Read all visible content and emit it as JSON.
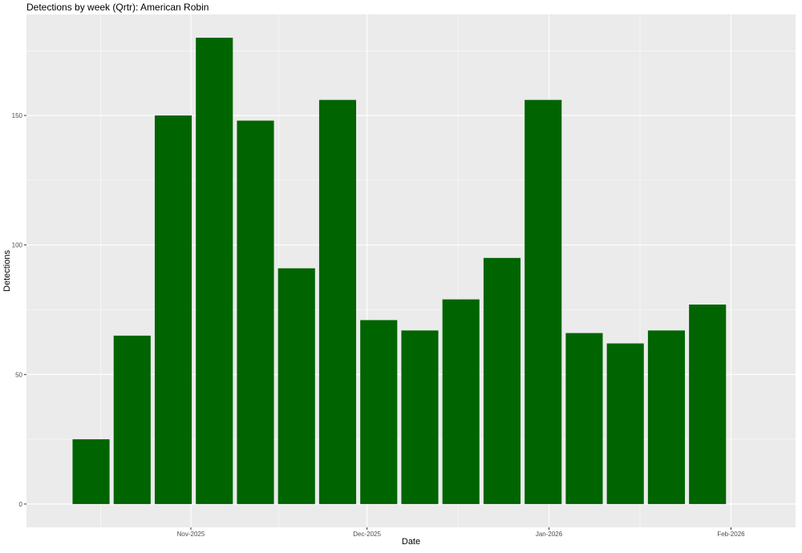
{
  "chart_data": {
    "type": "bar",
    "title": "Detections by week (Qrtr): American Robin",
    "xlabel": "Date",
    "ylabel": "Detections",
    "x": [
      "2025-10-15",
      "2025-10-22",
      "2025-10-29",
      "2025-11-05",
      "2025-11-12",
      "2025-11-19",
      "2025-11-26",
      "2025-12-03",
      "2025-12-10",
      "2025-12-17",
      "2025-12-24",
      "2025-12-31",
      "2026-01-07",
      "2026-01-14",
      "2026-01-21",
      "2026-01-28"
    ],
    "values": [
      25,
      65,
      150,
      180,
      148,
      91,
      156,
      71,
      67,
      79,
      95,
      156,
      66,
      62,
      67,
      77
    ],
    "xlim": [
      "2025-10-04",
      "2026-02-12"
    ],
    "ylim": [
      -9,
      189
    ],
    "x_ticks": [
      {
        "date": "2025-11-01",
        "label": "Nov-2025"
      },
      {
        "date": "2025-12-01",
        "label": "Dec-2025"
      },
      {
        "date": "2026-01-01",
        "label": "Jan-2026"
      },
      {
        "date": "2026-02-01",
        "label": "Feb-2026"
      }
    ],
    "y_ticks": [
      0,
      50,
      100,
      150
    ],
    "grid": true,
    "colors": {
      "bar": "#006400",
      "panel": "#EBEBEB",
      "grid": "#FFFFFF"
    }
  }
}
